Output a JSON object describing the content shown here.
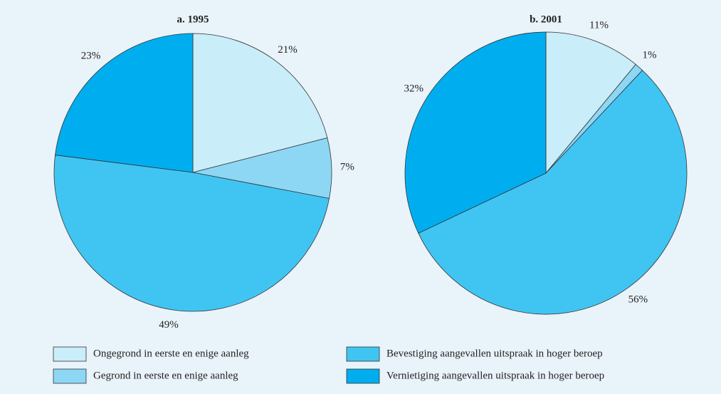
{
  "legend": [
    {
      "name": "Ongegrond in eerste en enige aanleg",
      "color": "#c9edf9"
    },
    {
      "name": "Gegrond in eerste en enige aanleg",
      "color": "#8dd7f5"
    },
    {
      "name": "Bevestiging aangevallen uitspraak in hoger beroep",
      "color": "#40c5f3"
    },
    {
      "name": "Vernietiging aangevallen uitspraak in hoger beroep",
      "color": "#00aeef"
    }
  ],
  "chart_data": [
    {
      "type": "pie",
      "title": "a.  1995",
      "values": [
        21,
        7,
        49,
        23
      ],
      "value_labels": [
        "21%",
        "7%",
        "49%",
        "23%"
      ]
    },
    {
      "type": "pie",
      "title": "b.  2001",
      "values": [
        11,
        1,
        56,
        32
      ],
      "value_labels": [
        "11%",
        "1%",
        "56%",
        "32%"
      ]
    }
  ]
}
